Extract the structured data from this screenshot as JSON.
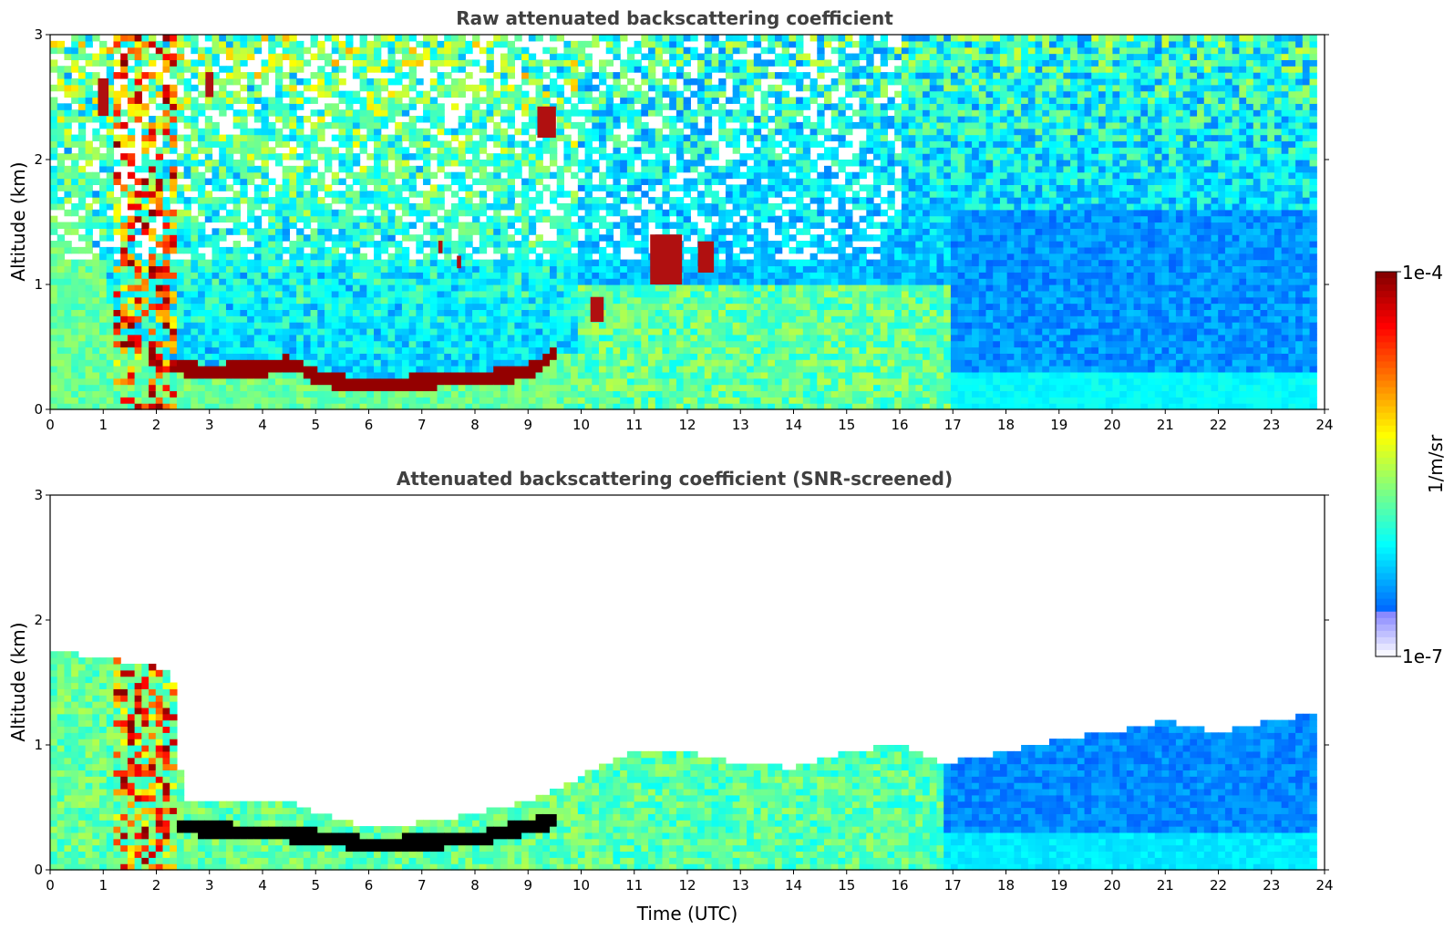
{
  "chart_data": [
    {
      "type": "heatmap",
      "title": "Raw attenuated backscattering coefficient",
      "xlabel": "",
      "ylabel": "Altitude (km)",
      "xlim": [
        0,
        24
      ],
      "ylim": [
        0,
        3
      ],
      "xticks": [
        "0",
        "1",
        "2",
        "3",
        "4",
        "5",
        "6",
        "7",
        "8",
        "9",
        "10",
        "11",
        "12",
        "13",
        "14",
        "15",
        "16",
        "17",
        "18",
        "19",
        "20",
        "21",
        "22",
        "23",
        "24"
      ],
      "yticks": [
        "0",
        "1",
        "2",
        "3"
      ],
      "screened": false,
      "layer_top_km": [
        [
          0,
          1.58
        ],
        [
          0.3,
          1.62
        ],
        [
          0.6,
          1.55
        ],
        [
          0.9,
          1.2
        ],
        [
          1.3,
          0.6
        ],
        [
          1.8,
          0.55
        ],
        [
          2.1,
          0.35
        ],
        [
          2.6,
          0.33
        ],
        [
          3.0,
          0.3
        ],
        [
          3.5,
          0.33
        ],
        [
          4.0,
          0.33
        ],
        [
          4.5,
          0.38
        ],
        [
          5.0,
          0.27
        ],
        [
          5.5,
          0.22
        ],
        [
          6.0,
          0.2
        ],
        [
          6.5,
          0.21
        ],
        [
          7.0,
          0.22
        ],
        [
          7.5,
          0.25
        ],
        [
          8.0,
          0.25
        ],
        [
          8.5,
          0.27
        ],
        [
          9.0,
          0.3
        ],
        [
          9.3,
          0.38
        ],
        [
          9.5,
          0.45
        ]
      ],
      "cloud_patches": [
        {
          "t": 9.35,
          "alt": 2.3,
          "dt": 0.35,
          "dalt": 0.25
        },
        {
          "t": 7.35,
          "alt": 1.3,
          "dt": 0.08,
          "dalt": 0.1
        },
        {
          "t": 7.7,
          "alt": 1.18,
          "dt": 0.08,
          "dalt": 0.1
        },
        {
          "t": 11.6,
          "alt": 1.2,
          "dt": 0.6,
          "dalt": 0.4
        },
        {
          "t": 12.35,
          "alt": 1.22,
          "dt": 0.3,
          "dalt": 0.25
        },
        {
          "t": 10.3,
          "alt": 0.8,
          "dt": 0.25,
          "dalt": 0.2
        },
        {
          "t": 1.0,
          "alt": 2.5,
          "dt": 0.2,
          "dalt": 0.3
        },
        {
          "t": 3.0,
          "alt": 2.6,
          "dt": 0.15,
          "dalt": 0.2
        }
      ]
    },
    {
      "type": "heatmap",
      "title": "Attenuated backscattering coefficient (SNR-screened)",
      "xlabel": "Time (UTC)",
      "ylabel": "Altitude (km)",
      "xlim": [
        0,
        24
      ],
      "ylim": [
        0,
        3
      ],
      "xticks": [
        "0",
        "1",
        "2",
        "3",
        "4",
        "5",
        "6",
        "7",
        "8",
        "9",
        "10",
        "11",
        "12",
        "13",
        "14",
        "15",
        "16",
        "17",
        "18",
        "19",
        "20",
        "21",
        "22",
        "23",
        "24"
      ],
      "yticks": [
        "0",
        "1",
        "2",
        "3"
      ],
      "screened": true,
      "valid_top_km": [
        [
          0,
          1.75
        ],
        [
          1.0,
          1.7
        ],
        [
          2.3,
          1.6
        ],
        [
          2.5,
          0.55
        ],
        [
          3.5,
          0.55
        ],
        [
          4.5,
          0.55
        ],
        [
          5.0,
          0.45
        ],
        [
          6.0,
          0.35
        ],
        [
          7.0,
          0.38
        ],
        [
          8.0,
          0.45
        ],
        [
          9.0,
          0.55
        ],
        [
          10.0,
          0.75
        ],
        [
          11.0,
          0.95
        ],
        [
          12.0,
          0.95
        ],
        [
          13.0,
          0.85
        ],
        [
          14.0,
          0.82
        ],
        [
          15.0,
          0.95
        ],
        [
          16.0,
          1.0
        ],
        [
          16.8,
          0.85
        ],
        [
          18.0,
          0.95
        ],
        [
          19.0,
          1.05
        ],
        [
          20.0,
          1.1
        ],
        [
          21.0,
          1.2
        ],
        [
          22.0,
          1.1
        ],
        [
          23.0,
          1.2
        ],
        [
          23.8,
          1.25
        ]
      ]
    }
  ],
  "colorbar": {
    "label": "1/m/sr",
    "max_label": "1e-4",
    "min_label": "1e-7",
    "range": [
      1e-07,
      0.0001
    ],
    "scale": "log",
    "colormap": "jet"
  }
}
